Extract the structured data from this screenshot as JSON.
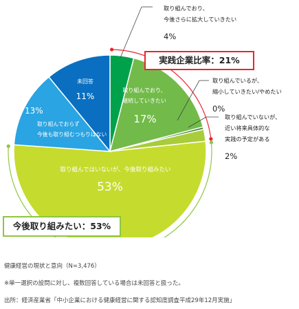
{
  "chart_data": {
    "type": "pie",
    "slices": [
      {
        "label_lines": [
          "取り組んでおり、",
          "今後さらに拡大していきたい"
        ],
        "value": 4,
        "value_text": "4%",
        "color": "#00a14b"
      },
      {
        "label_lines": [
          "取り組んでおり、",
          "継続していきたい"
        ],
        "value": 17,
        "value_text": "17%",
        "color": "#72bb4a"
      },
      {
        "label_lines": [
          "取り組んでいるが、",
          "縮小していきたい/やめたい"
        ],
        "value": 0,
        "value_text": "0%",
        "color": "#4f8a3f"
      },
      {
        "label_lines": [
          "取り組んでいないが、",
          "近い将来具体的な",
          "実践の予定がある"
        ],
        "value": 2,
        "value_text": "2%",
        "color": "#a8cc3a"
      },
      {
        "label_lines": [
          "取り組んではいないが、今後取り組みたい"
        ],
        "value": 53,
        "value_text": "53%",
        "color": "#c5dc2e"
      },
      {
        "label_lines": [
          "取り組んでおらず",
          "今後も取り組むつもりはない"
        ],
        "value": 13,
        "value_text": "13%",
        "color": "#2aa4e2"
      },
      {
        "label_lines": [
          "未回答"
        ],
        "value": 11,
        "value_text": "11%",
        "color": "#0a6fc0"
      }
    ],
    "callouts": {
      "practice_rate": "実践企業比率：21%",
      "future_intent": "今後取り組みたい：53%"
    },
    "colors": {
      "practice_arc": "#e8262b",
      "intent_arc": "#8ec641"
    }
  },
  "notes": {
    "caption": "健康経営の現状と意向（N=3,476）",
    "note": "※単一選択の設問に対し、複数回答している場合は未回答と扱った。",
    "source": "出所：経済産業省「中小企業における健康経営に関する認知度調査平成29年12月実施」"
  }
}
